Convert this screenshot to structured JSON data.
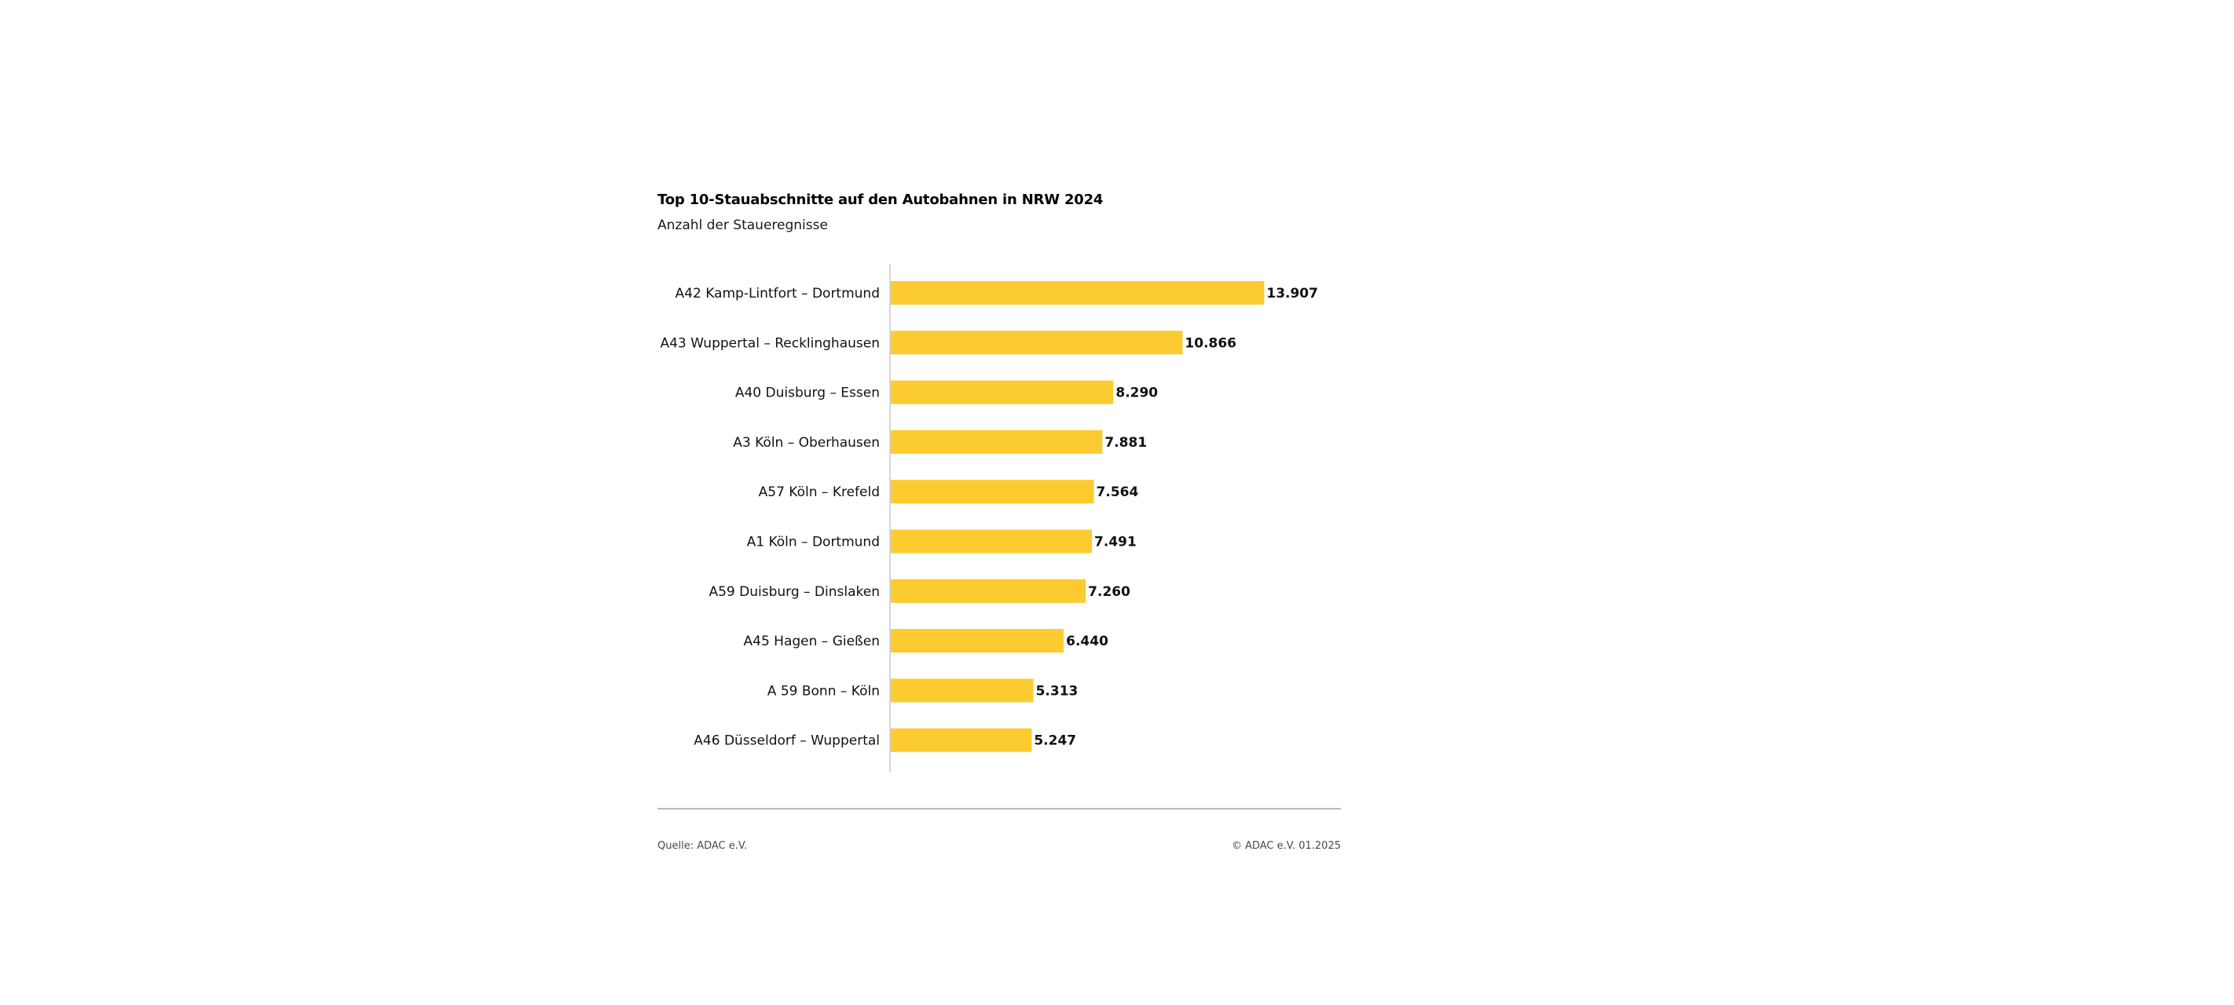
{
  "chart_data": {
    "type": "bar",
    "orientation": "horizontal",
    "title": "Top 10-Stauabschnitte auf den Autobahnen in NRW 2024",
    "subtitle": "Anzahl der Staueregnisse",
    "categories": [
      "A42 Kamp-Lintfort – Dortmund",
      "A43 Wuppertal – Recklinghausen",
      "A40 Duisburg – Essen",
      "A3 Köln – Oberhausen",
      "A57 Köln – Krefeld",
      "A1 Köln – Dortmund",
      "A59 Duisburg – Dinslaken",
      "A45 Hagen – Gießen",
      "A 59 Bonn – Köln",
      "A46 Düsseldorf – Wuppertal"
    ],
    "values": [
      13907,
      10866,
      8290,
      7881,
      7564,
      7491,
      7260,
      6440,
      5313,
      5247
    ],
    "value_labels": [
      "13.907",
      "10.866",
      "8.290",
      "7.881",
      "7.564",
      "7.491",
      "7.260",
      "6.440",
      "5.313",
      "5.247"
    ],
    "xlim": [
      0,
      16500
    ],
    "grid": false,
    "legend": "none",
    "bar_color": "#FCCB2F",
    "axis_color": "#c8c8c8"
  },
  "footer": {
    "source": "Quelle: ADAC e.V.",
    "copyright": "© ADAC e.V. 01.2025"
  }
}
